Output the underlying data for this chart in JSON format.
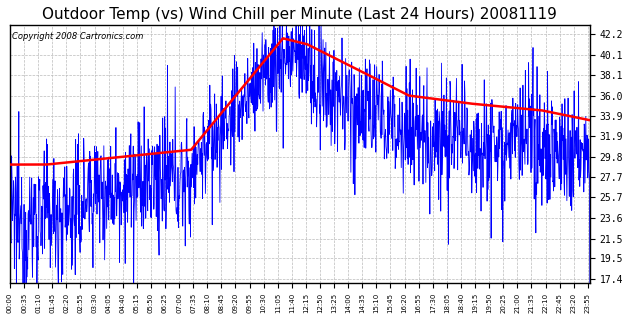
{
  "title": "Outdoor Temp (vs) Wind Chill per Minute (Last 24 Hours) 20081119",
  "copyright": "Copyright 2008 Cartronics.com",
  "yticks": [
    17.4,
    19.5,
    21.5,
    23.6,
    25.7,
    27.7,
    29.8,
    31.9,
    33.9,
    36.0,
    38.1,
    40.1,
    42.2
  ],
  "ylim": [
    17.0,
    43.2
  ],
  "background_color": "#ffffff",
  "plot_bg_color": "#ffffff",
  "grid_color": "#bbbbbb",
  "blue_color": "#0000ff",
  "red_color": "#ff0000",
  "title_fontsize": 11,
  "copyright_fontsize": 6,
  "n_points": 1440,
  "xtick_step_minutes": 35
}
